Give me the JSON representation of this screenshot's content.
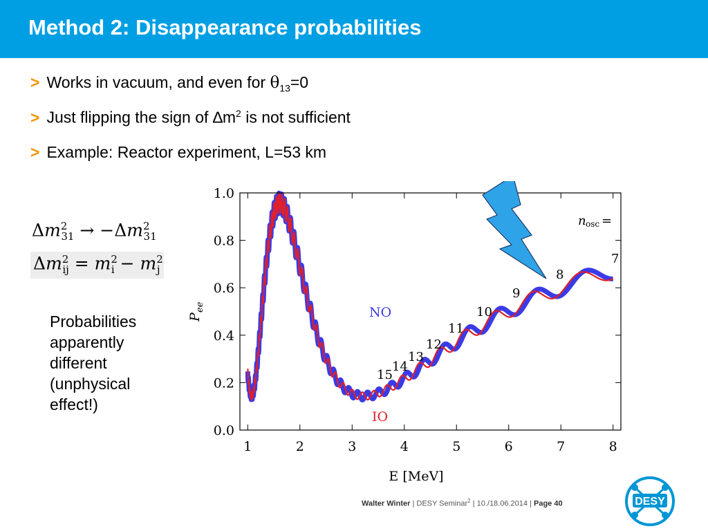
{
  "header": {
    "title": "Method 2: Disappearance probabilities",
    "color": "#009FE3"
  },
  "bullets": {
    "marker": ">",
    "b1": {
      "text": "Works in vacuum, and even for ",
      "symbol": "θ",
      "sub": "13",
      "after": "=0"
    },
    "b2": {
      "text": "Just flipping the sign of ",
      "symbol": "∆m",
      "sup": "2",
      "after": " is not sufficient"
    },
    "b3": {
      "text": "Example: Reactor experiment, L=53 km"
    }
  },
  "formulas": {
    "f1": {
      "delta": "Δ",
      "m": "m",
      "sup": "2",
      "sub": "31",
      "arrow": " → −",
      "delta2": "Δ",
      "m2": "m",
      "sup2": "2",
      "sub2": "31"
    },
    "f2": {
      "delta": "Δ",
      "m": "m",
      "sup": "2",
      "sub": "ij",
      "eq": " = ",
      "mi": "m",
      "supi": "2",
      "subi": "i",
      "minus": " − ",
      "mj": "m",
      "supj": "2",
      "subj": "j"
    }
  },
  "note": [
    "Probabilities",
    "apparently",
    "different",
    "(unphysical",
    "effect!)"
  ],
  "chart_data": {
    "type": "line",
    "xlabel": "E [MeV]",
    "ylabel": "P",
    "ylabel_sub": "ee",
    "xlim": [
      0.85,
      8.15
    ],
    "ylim": [
      0.0,
      1.0
    ],
    "x_ticks": [
      "1",
      "2",
      "3",
      "4",
      "5",
      "6",
      "7",
      "8"
    ],
    "y_ticks": [
      "0.0",
      "0.2",
      "0.4",
      "0.6",
      "0.8",
      "1.0"
    ],
    "series": [
      {
        "name": "NO",
        "color": "#3B3BE6"
      },
      {
        "name": "IO",
        "color": "#E0202A"
      }
    ],
    "nosc_label": "n",
    "nosc_sub": "osc",
    "nosc_eq": "=",
    "nosc_values": [
      "7",
      "8",
      "9",
      "10",
      "11",
      "12",
      "13",
      "14",
      "15"
    ],
    "lightning_color": "#2FA3E8"
  },
  "footer": {
    "author": "Walter Winter",
    "sep": "|",
    "event": "DESY Seminar",
    "event_sup": "2",
    "dates": "10./18.06.2014",
    "page": "Page 40"
  },
  "logo": {
    "text": "DESY"
  }
}
